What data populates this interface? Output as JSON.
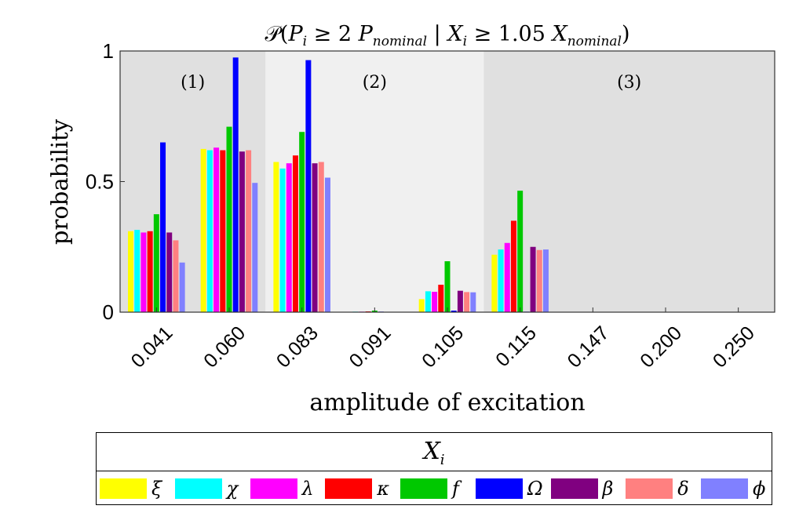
{
  "chart_data": {
    "type": "bar",
    "title": "𝒫(P_i ≥ 2 P_nominal | X_i ≥ 1.05 X_nominal)",
    "title_parts": {
      "script": "𝒫(",
      "p": "P",
      "i": "i",
      "ge1": " ≥ 2 ",
      "p2": "P",
      "nominal": "nominal",
      "bar": " | ",
      "x": "X",
      "i2": "i",
      "ge2": " ≥ 1.05 ",
      "x2": "X",
      "nominal2": "nominal",
      "close": ")"
    },
    "xlabel": "amplitude of excitation",
    "ylabel": "probability",
    "ylim": [
      0,
      1
    ],
    "yticks": [
      "0",
      "0.5",
      "1"
    ],
    "categories": [
      "0.041",
      "0.060",
      "0.083",
      "0.091",
      "0.105",
      "0.115",
      "0.147",
      "0.200",
      "0.250"
    ],
    "regions": [
      {
        "label": "(1)",
        "from": 0,
        "to": 2,
        "color": "#e0e0e0"
      },
      {
        "label": "(2)",
        "from": 2,
        "to": 5,
        "color": "#f0f0f0"
      },
      {
        "label": "(3)",
        "from": 5,
        "to": 9,
        "color": "#e0e0e0"
      }
    ],
    "legend_title": "X_i",
    "legend_title_parts": {
      "x": "X",
      "i": "i"
    },
    "series": [
      {
        "name": "ξ",
        "color": "#ffff00",
        "values": [
          0.31,
          0.625,
          0.575,
          0.001,
          0.05,
          0.22,
          0,
          0,
          0
        ]
      },
      {
        "name": "χ",
        "color": "#00ffff",
        "values": [
          0.315,
          0.62,
          0.55,
          0.002,
          0.08,
          0.24,
          0,
          0,
          0
        ]
      },
      {
        "name": "λ",
        "color": "#ff00ff",
        "values": [
          0.305,
          0.63,
          0.57,
          0.002,
          0.078,
          0.265,
          0,
          0,
          0
        ]
      },
      {
        "name": "κ",
        "color": "#ff0000",
        "values": [
          0.31,
          0.62,
          0.6,
          0.003,
          0.105,
          0.35,
          0,
          0,
          0
        ]
      },
      {
        "name": "f",
        "color": "#00c800",
        "values": [
          0.375,
          0.71,
          0.69,
          0.006,
          0.195,
          0.465,
          0,
          0,
          0
        ]
      },
      {
        "name": "Ω",
        "color": "#0000ff",
        "values": [
          0.65,
          0.975,
          0.965,
          0.002,
          0.006,
          0.002,
          0,
          0,
          0
        ]
      },
      {
        "name": "β",
        "color": "#800080",
        "values": [
          0.305,
          0.615,
          0.57,
          0.001,
          0.082,
          0.25,
          0,
          0,
          0
        ]
      },
      {
        "name": "δ",
        "color": "#ff8080",
        "values": [
          0.275,
          0.62,
          0.575,
          0.001,
          0.077,
          0.238,
          0,
          0,
          0
        ]
      },
      {
        "name": "ϕ",
        "color": "#8080ff",
        "values": [
          0.19,
          0.495,
          0.515,
          0.001,
          0.076,
          0.24,
          0,
          0,
          0
        ]
      }
    ]
  }
}
